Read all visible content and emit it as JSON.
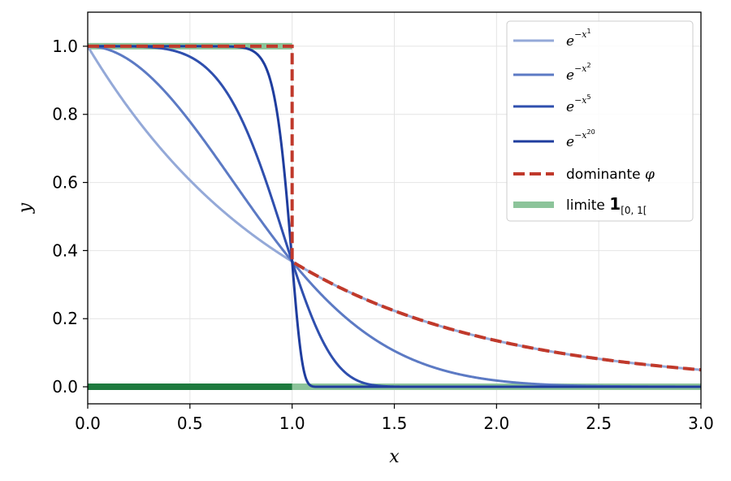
{
  "chart_data": {
    "type": "line",
    "title": "",
    "xlabel": "x",
    "ylabel": "y",
    "xlim": [
      0,
      3
    ],
    "ylim": [
      -0.05,
      1.1
    ],
    "xticks": [
      "0.0",
      "0.5",
      "1.0",
      "1.5",
      "2.0",
      "2.5",
      "3.0"
    ],
    "yticks": [
      "0.0",
      "0.2",
      "0.4",
      "0.6",
      "0.8",
      "1.0"
    ],
    "grid": true,
    "legend_position": "top-right",
    "series": [
      {
        "name": "e^{-x^1}",
        "label_base": "e",
        "label_sup": "−x",
        "label_sup2": "1",
        "formula": "exp(-x^1)",
        "exponent": 1,
        "color": "#94a9d8",
        "style": "solid"
      },
      {
        "name": "e^{-x^2}",
        "label_base": "e",
        "label_sup": "−x",
        "label_sup2": "2",
        "formula": "exp(-x^2)",
        "exponent": 2,
        "color": "#5c7ac4",
        "style": "solid"
      },
      {
        "name": "e^{-x^5}",
        "label_base": "e",
        "label_sup": "−x",
        "label_sup2": "5",
        "formula": "exp(-x^5)",
        "exponent": 5,
        "color": "#2f4fae",
        "style": "solid"
      },
      {
        "name": "e^{-x^20}",
        "label_base": "e",
        "label_sup": "−x",
        "label_sup2": "20",
        "formula": "exp(-x^20)",
        "exponent": 20,
        "color": "#1f3d9e",
        "style": "solid"
      },
      {
        "name": "dominante φ",
        "label_text": "dominante ",
        "label_symbol": "φ",
        "formula": "1 on [0,1], exp(-x) on [1,3]",
        "color": "#c0392b",
        "style": "dashed"
      },
      {
        "name": "limite 1_[0,1[",
        "label_text": "limite ",
        "label_bold": "1",
        "label_sub": "[0, 1[",
        "formula": "1 on [0,1[, 0 on [1,3]",
        "color": "#8cc49a",
        "style": "thick"
      }
    ],
    "limit_emphasis_color": "#1e7a3e"
  }
}
